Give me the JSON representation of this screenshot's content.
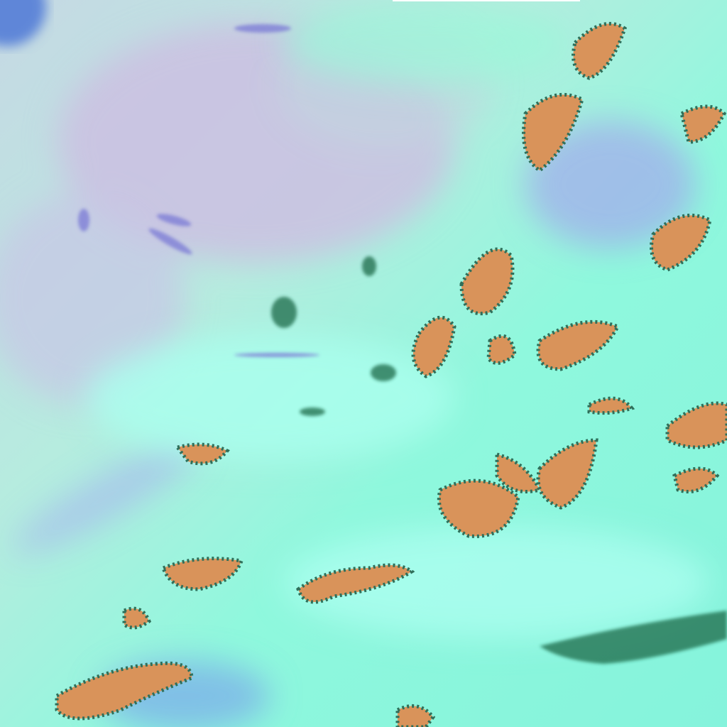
{
  "image": {
    "kind": "false-color satellite imagery",
    "colors": {
      "cloud_cyan": "#8ff5dc",
      "bright_cloud": "#b8fff0",
      "land_lavender": "#c8c2e6",
      "shadow_blue": "#8a8fe0",
      "orange_cells": "#d9935a",
      "dark_edges": "#2f6f5a",
      "water_blue": "#5f86d8"
    }
  }
}
